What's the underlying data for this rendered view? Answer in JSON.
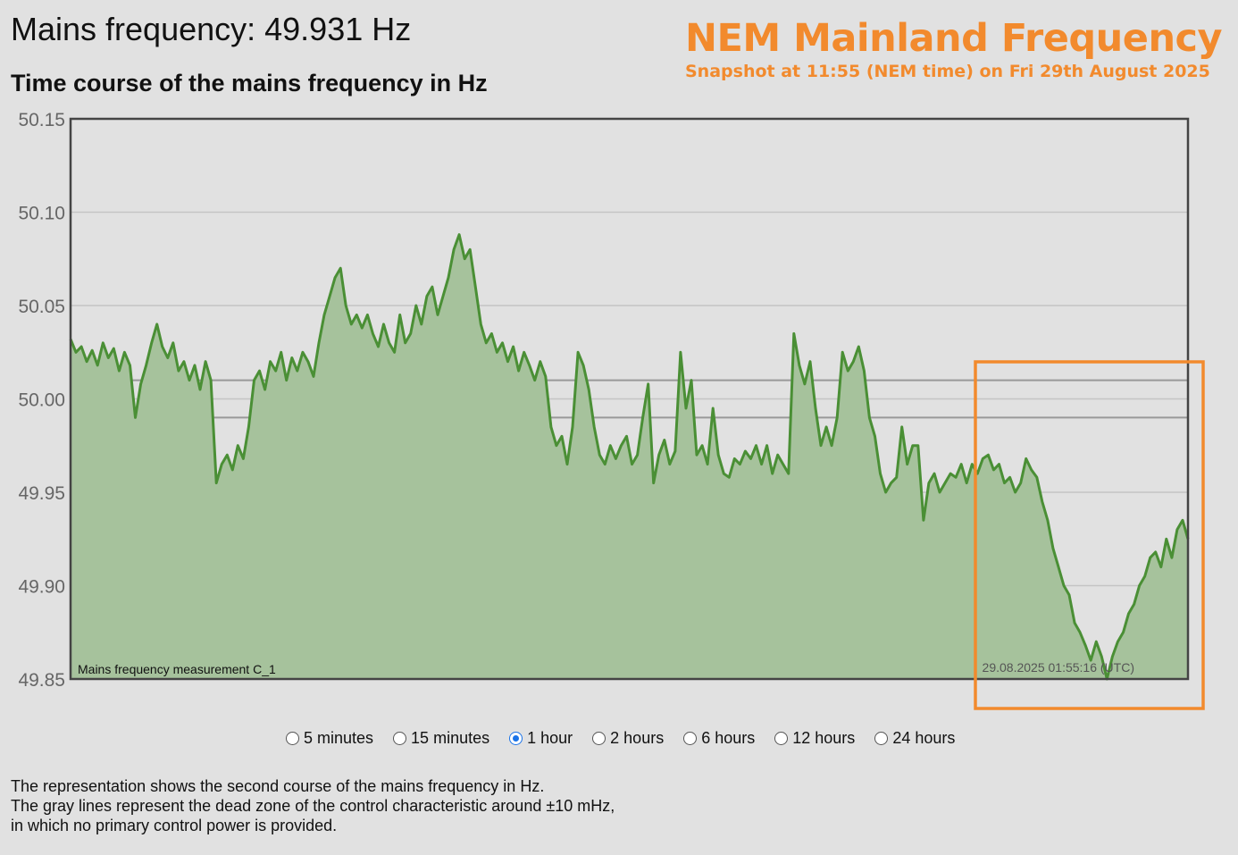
{
  "header": {
    "current_frequency": "Mains frequency: 49.931 Hz",
    "chart_title": "Time course of the mains frequency in Hz",
    "brand_title": "NEM Mainland Frequency",
    "brand_subtitle": "Snapshot at 11:55 (NEM time) on Fri 29th August 2025"
  },
  "colors": {
    "accent": "#f28a2d",
    "line": "#4a8f35",
    "fill": "#a6c29c",
    "background": "#e1e1e1"
  },
  "chart_data": {
    "type": "area",
    "title": "Time course of the mains frequency in Hz",
    "ylabel": "",
    "xlabel": "",
    "ylim": [
      49.85,
      50.15
    ],
    "yticks": [
      "50.15",
      "50.10",
      "50.05",
      "50.00",
      "49.95",
      "49.90",
      "49.85"
    ],
    "dead_zone": [
      49.99,
      50.01
    ],
    "grid": true,
    "series": [
      {
        "name": "Mains frequency measurement C_1",
        "points": [
          [
            0,
            50.032
          ],
          [
            1,
            50.025
          ],
          [
            2,
            50.028
          ],
          [
            3,
            50.02
          ],
          [
            4,
            50.026
          ],
          [
            5,
            50.018
          ],
          [
            6,
            50.03
          ],
          [
            7,
            50.022
          ],
          [
            8,
            50.027
          ],
          [
            9,
            50.015
          ],
          [
            10,
            50.025
          ],
          [
            11,
            50.018
          ],
          [
            12,
            49.99
          ],
          [
            13,
            50.008
          ],
          [
            14,
            50.018
          ],
          [
            15,
            50.03
          ],
          [
            16,
            50.04
          ],
          [
            17,
            50.028
          ],
          [
            18,
            50.022
          ],
          [
            19,
            50.03
          ],
          [
            20,
            50.015
          ],
          [
            21,
            50.02
          ],
          [
            22,
            50.01
          ],
          [
            23,
            50.018
          ],
          [
            24,
            50.005
          ],
          [
            25,
            50.02
          ],
          [
            26,
            50.01
          ],
          [
            27,
            49.955
          ],
          [
            28,
            49.965
          ],
          [
            29,
            49.97
          ],
          [
            30,
            49.962
          ],
          [
            31,
            49.975
          ],
          [
            32,
            49.968
          ],
          [
            33,
            49.985
          ],
          [
            34,
            50.01
          ],
          [
            35,
            50.015
          ],
          [
            36,
            50.005
          ],
          [
            37,
            50.02
          ],
          [
            38,
            50.015
          ],
          [
            39,
            50.025
          ],
          [
            40,
            50.01
          ],
          [
            41,
            50.022
          ],
          [
            42,
            50.015
          ],
          [
            43,
            50.025
          ],
          [
            44,
            50.02
          ],
          [
            45,
            50.012
          ],
          [
            46,
            50.03
          ],
          [
            47,
            50.045
          ],
          [
            48,
            50.055
          ],
          [
            49,
            50.065
          ],
          [
            50,
            50.07
          ],
          [
            51,
            50.05
          ],
          [
            52,
            50.04
          ],
          [
            53,
            50.045
          ],
          [
            54,
            50.038
          ],
          [
            55,
            50.045
          ],
          [
            56,
            50.035
          ],
          [
            57,
            50.028
          ],
          [
            58,
            50.04
          ],
          [
            59,
            50.03
          ],
          [
            60,
            50.025
          ],
          [
            61,
            50.045
          ],
          [
            62,
            50.03
          ],
          [
            63,
            50.035
          ],
          [
            64,
            50.05
          ],
          [
            65,
            50.04
          ],
          [
            66,
            50.055
          ],
          [
            67,
            50.06
          ],
          [
            68,
            50.045
          ],
          [
            69,
            50.055
          ],
          [
            70,
            50.065
          ],
          [
            71,
            50.08
          ],
          [
            72,
            50.088
          ],
          [
            73,
            50.075
          ],
          [
            74,
            50.08
          ],
          [
            75,
            50.06
          ],
          [
            76,
            50.04
          ],
          [
            77,
            50.03
          ],
          [
            78,
            50.035
          ],
          [
            79,
            50.025
          ],
          [
            80,
            50.03
          ],
          [
            81,
            50.02
          ],
          [
            82,
            50.028
          ],
          [
            83,
            50.015
          ],
          [
            84,
            50.025
          ],
          [
            85,
            50.018
          ],
          [
            86,
            50.01
          ],
          [
            87,
            50.02
          ],
          [
            88,
            50.012
          ],
          [
            89,
            49.985
          ],
          [
            90,
            49.975
          ],
          [
            91,
            49.98
          ],
          [
            92,
            49.965
          ],
          [
            93,
            49.985
          ],
          [
            94,
            50.025
          ],
          [
            95,
            50.018
          ],
          [
            96,
            50.005
          ],
          [
            97,
            49.985
          ],
          [
            98,
            49.97
          ],
          [
            99,
            49.965
          ],
          [
            100,
            49.975
          ],
          [
            101,
            49.968
          ],
          [
            102,
            49.975
          ],
          [
            103,
            49.98
          ],
          [
            104,
            49.965
          ],
          [
            105,
            49.97
          ],
          [
            106,
            49.99
          ],
          [
            107,
            50.008
          ],
          [
            108,
            49.955
          ],
          [
            109,
            49.97
          ],
          [
            110,
            49.978
          ],
          [
            111,
            49.965
          ],
          [
            112,
            49.972
          ],
          [
            113,
            50.025
          ],
          [
            114,
            49.995
          ],
          [
            115,
            50.01
          ],
          [
            116,
            49.97
          ],
          [
            117,
            49.975
          ],
          [
            118,
            49.965
          ],
          [
            119,
            49.995
          ],
          [
            120,
            49.97
          ],
          [
            121,
            49.96
          ],
          [
            122,
            49.958
          ],
          [
            123,
            49.968
          ],
          [
            124,
            49.965
          ],
          [
            125,
            49.972
          ],
          [
            126,
            49.968
          ],
          [
            127,
            49.975
          ],
          [
            128,
            49.965
          ],
          [
            129,
            49.975
          ],
          [
            130,
            49.96
          ],
          [
            131,
            49.97
          ],
          [
            132,
            49.965
          ],
          [
            133,
            49.96
          ],
          [
            134,
            50.035
          ],
          [
            135,
            50.018
          ],
          [
            136,
            50.008
          ],
          [
            137,
            50.02
          ],
          [
            138,
            49.995
          ],
          [
            139,
            49.975
          ],
          [
            140,
            49.985
          ],
          [
            141,
            49.975
          ],
          [
            142,
            49.99
          ],
          [
            143,
            50.025
          ],
          [
            144,
            50.015
          ],
          [
            145,
            50.02
          ],
          [
            146,
            50.028
          ],
          [
            147,
            50.015
          ],
          [
            148,
            49.99
          ],
          [
            149,
            49.98
          ],
          [
            150,
            49.96
          ],
          [
            151,
            49.95
          ],
          [
            152,
            49.955
          ],
          [
            153,
            49.958
          ],
          [
            154,
            49.985
          ],
          [
            155,
            49.965
          ],
          [
            156,
            49.975
          ],
          [
            157,
            49.975
          ],
          [
            158,
            49.935
          ],
          [
            159,
            49.955
          ],
          [
            160,
            49.96
          ],
          [
            161,
            49.95
          ],
          [
            162,
            49.955
          ],
          [
            163,
            49.96
          ],
          [
            164,
            49.958
          ],
          [
            165,
            49.965
          ],
          [
            166,
            49.955
          ],
          [
            167,
            49.965
          ],
          [
            168,
            49.96
          ],
          [
            169,
            49.968
          ],
          [
            170,
            49.97
          ],
          [
            171,
            49.962
          ],
          [
            172,
            49.965
          ],
          [
            173,
            49.955
          ],
          [
            174,
            49.958
          ],
          [
            175,
            49.95
          ],
          [
            176,
            49.955
          ],
          [
            177,
            49.968
          ],
          [
            178,
            49.962
          ],
          [
            179,
            49.958
          ],
          [
            180,
            49.945
          ],
          [
            181,
            49.935
          ],
          [
            182,
            49.92
          ],
          [
            183,
            49.91
          ],
          [
            184,
            49.9
          ],
          [
            185,
            49.895
          ],
          [
            186,
            49.88
          ],
          [
            187,
            49.875
          ],
          [
            188,
            49.868
          ],
          [
            189,
            49.86
          ],
          [
            190,
            49.87
          ],
          [
            191,
            49.862
          ],
          [
            192,
            49.85
          ],
          [
            193,
            49.862
          ],
          [
            194,
            49.87
          ],
          [
            195,
            49.875
          ],
          [
            196,
            49.885
          ],
          [
            197,
            49.89
          ],
          [
            198,
            49.9
          ],
          [
            199,
            49.905
          ],
          [
            200,
            49.915
          ],
          [
            201,
            49.918
          ],
          [
            202,
            49.91
          ],
          [
            203,
            49.925
          ],
          [
            204,
            49.915
          ],
          [
            205,
            49.93
          ],
          [
            206,
            49.935
          ],
          [
            207,
            49.925
          ]
        ]
      }
    ],
    "x_domain": [
      0,
      207
    ],
    "annotations": {
      "series_label": "Mains frequency measurement C_1",
      "timestamp": "29.08.2025 01:55:16 (UTC)"
    }
  },
  "ranges": {
    "options": [
      {
        "label": "5 minutes",
        "checked": false
      },
      {
        "label": "15 minutes",
        "checked": false
      },
      {
        "label": "1 hour",
        "checked": true
      },
      {
        "label": "2 hours",
        "checked": false
      },
      {
        "label": "6 hours",
        "checked": false
      },
      {
        "label": "12 hours",
        "checked": false
      },
      {
        "label": "24 hours",
        "checked": false
      }
    ]
  },
  "note": {
    "line1": "The representation shows the second course of the mains frequency in Hz.",
    "line2": "The gray lines represent the dead zone of the control characteristic around ±10 mHz,",
    "line3": "in which no primary control power is provided."
  }
}
